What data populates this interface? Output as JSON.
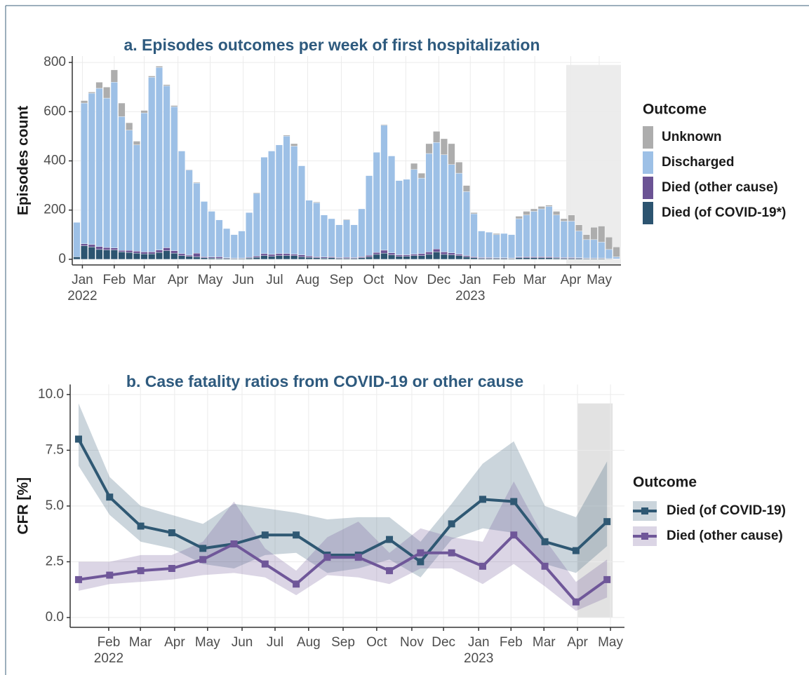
{
  "chart_data": [
    {
      "type": "bar",
      "stacked": true,
      "title": "a. Episodes outcomes per week of first hospitalization",
      "ylabel": "Episodes count",
      "legend_title": "Outcome",
      "legend": "right",
      "grid": true,
      "categories": [
        null,
        null,
        null,
        null,
        null,
        null,
        null,
        null,
        null,
        null,
        null,
        null,
        null,
        null,
        null,
        null,
        null,
        null,
        null,
        null,
        null,
        null,
        null,
        null,
        null,
        null,
        null,
        null,
        null,
        null,
        null,
        null,
        null,
        null,
        null,
        null,
        null,
        null,
        null,
        null,
        null,
        null,
        null,
        null,
        null,
        null,
        null,
        null,
        null,
        null,
        null,
        null,
        null,
        null,
        null,
        null,
        null,
        null,
        null,
        null,
        null,
        null,
        null,
        null,
        null,
        null,
        null,
        null,
        null,
        null,
        null,
        null,
        null
      ],
      "xlim": [
        -0.6,
        72.6
      ],
      "ylim": [
        -23,
        826
      ],
      "yticks": [
        0,
        200,
        400,
        600,
        800
      ],
      "xticks": [
        {
          "value": 0.75,
          "label": "Jan"
        },
        {
          "value": 5.0,
          "label": "Feb"
        },
        {
          "value": 9.0,
          "label": "Mar"
        },
        {
          "value": 13.5,
          "label": "Apr"
        },
        {
          "value": 17.8,
          "label": "May"
        },
        {
          "value": 22.2,
          "label": "Jun"
        },
        {
          "value": 26.4,
          "label": "Jul"
        },
        {
          "value": 30.8,
          "label": "Aug"
        },
        {
          "value": 35.3,
          "label": "Sep"
        },
        {
          "value": 39.6,
          "label": "Oct"
        },
        {
          "value": 43.9,
          "label": "Nov"
        },
        {
          "value": 48.3,
          "label": "Dec"
        },
        {
          "value": 52.5,
          "label": "Jan"
        },
        {
          "value": 57.0,
          "label": "Feb"
        },
        {
          "value": 61.1,
          "label": "Mar"
        },
        {
          "value": 65.9,
          "label": "Apr"
        },
        {
          "value": 69.7,
          "label": "May"
        }
      ],
      "xsublabels": [
        {
          "value": 0.75,
          "label": "2022"
        },
        {
          "value": 52.5,
          "label": "2023"
        }
      ],
      "highlight": {
        "x": [
          65.3,
          72.6
        ],
        "y": [
          -23,
          790
        ]
      },
      "series": [
        {
          "name": "Died (of COVID-19*)",
          "color": "#2c5470",
          "values": [
            10,
            55,
            50,
            40,
            38,
            38,
            30,
            28,
            25,
            22,
            22,
            28,
            35,
            25,
            15,
            12,
            10,
            6,
            5,
            4,
            4,
            3,
            3,
            5,
            8,
            15,
            12,
            15,
            15,
            15,
            10,
            8,
            6,
            5,
            6,
            4,
            4,
            4,
            6,
            10,
            20,
            25,
            18,
            12,
            12,
            15,
            15,
            20,
            30,
            20,
            18,
            15,
            10,
            6,
            4,
            4,
            4,
            4,
            3,
            6,
            6,
            6,
            6,
            6,
            5,
            4,
            4,
            4,
            3,
            3,
            3,
            2,
            1
          ]
        },
        {
          "name": "Died (other cause)",
          "color": "#6b5394",
          "values": [
            0,
            8,
            10,
            12,
            10,
            8,
            6,
            8,
            8,
            8,
            8,
            10,
            12,
            10,
            8,
            5,
            15,
            4,
            4,
            6,
            2,
            2,
            2,
            3,
            5,
            8,
            8,
            8,
            8,
            6,
            8,
            5,
            4,
            4,
            4,
            3,
            4,
            3,
            4,
            6,
            8,
            12,
            8,
            6,
            6,
            6,
            8,
            10,
            12,
            10,
            8,
            6,
            5,
            4,
            3,
            3,
            2,
            2,
            2,
            3,
            4,
            4,
            4,
            4,
            3,
            3,
            3,
            2,
            2,
            2,
            2,
            1,
            1
          ]
        },
        {
          "name": "Discharged",
          "color": "#9dc0e6",
          "values": [
            140,
            572,
            615,
            643,
            607,
            674,
            544,
            489,
            432,
            565,
            710,
            742,
            658,
            585,
            417,
            346,
            285,
            225,
            186,
            150,
            119,
            95,
            110,
            182,
            255,
            392,
            420,
            442,
            478,
            439,
            362,
            227,
            220,
            171,
            155,
            133,
            152,
            133,
            195,
            324,
            407,
            508,
            394,
            302,
            307,
            344,
            307,
            400,
            433,
            395,
            359,
            329,
            260,
            175,
            108,
            103,
            94,
            99,
            95,
            156,
            170,
            185,
            195,
            205,
            172,
            148,
            148,
            109,
            75,
            75,
            65,
            37,
            8
          ]
        },
        {
          "name": "Unknown",
          "color": "#adadad",
          "values": [
            0,
            10,
            5,
            25,
            45,
            50,
            55,
            30,
            15,
            10,
            5,
            5,
            5,
            5,
            0,
            2,
            3,
            0,
            0,
            0,
            0,
            0,
            0,
            0,
            3,
            0,
            0,
            0,
            4,
            10,
            0,
            0,
            3,
            0,
            0,
            0,
            3,
            0,
            0,
            0,
            0,
            3,
            0,
            0,
            0,
            25,
            20,
            40,
            45,
            65,
            85,
            45,
            25,
            5,
            0,
            0,
            5,
            0,
            0,
            10,
            15,
            10,
            10,
            5,
            15,
            10,
            25,
            25,
            20,
            50,
            65,
            50,
            40
          ]
        }
      ]
    },
    {
      "type": "line",
      "title": "b. Case fatality ratios from COVID-19 or other cause",
      "ylabel": "CFR [%]",
      "legend_title": "Outcome",
      "legend": "right",
      "grid": true,
      "categories": [
        null,
        null,
        null,
        null,
        null,
        null,
        null,
        null,
        null,
        null,
        null,
        null,
        null,
        null,
        null,
        null,
        null,
        null
      ],
      "xlim": [
        -0.27,
        17.56
      ],
      "ylim": [
        -0.44,
        10.45
      ],
      "yticks": [
        {
          "value": 0,
          "label": "0.0"
        },
        2.5,
        {
          "value": 5,
          "label": "5.0"
        },
        7.5,
        {
          "value": 10,
          "label": "10.0"
        }
      ],
      "xticks": [
        {
          "value": 0.97,
          "label": "Feb"
        },
        {
          "value": 1.99,
          "label": "Mar"
        },
        {
          "value": 3.09,
          "label": "Apr"
        },
        {
          "value": 4.15,
          "label": "May"
        },
        {
          "value": 5.26,
          "label": "Jun"
        },
        {
          "value": 6.32,
          "label": "Jul"
        },
        {
          "value": 7.4,
          "label": "Aug"
        },
        {
          "value": 8.51,
          "label": "Sep"
        },
        {
          "value": 9.59,
          "label": "Oct"
        },
        {
          "value": 10.72,
          "label": "Nov"
        },
        {
          "value": 11.74,
          "label": "Dec"
        },
        {
          "value": 12.87,
          "label": "Jan"
        },
        {
          "value": 13.91,
          "label": "Feb"
        },
        {
          "value": 14.97,
          "label": "Mar"
        },
        {
          "value": 16.05,
          "label": "Apr"
        },
        {
          "value": 17.11,
          "label": "May"
        }
      ],
      "xsublabels": [
        {
          "value": 0.97,
          "label": "2022"
        },
        {
          "value": 12.87,
          "label": "2023"
        }
      ],
      "highlight": {
        "x": [
          16.05,
          17.18
        ],
        "y": [
          0,
          9.6
        ]
      },
      "series": [
        {
          "name": "Died (of COVID-19)",
          "color": "#2f5873",
          "values": [
            8.0,
            5.4,
            4.1,
            3.8,
            3.1,
            3.3,
            3.7,
            3.7,
            2.8,
            2.8,
            3.5,
            2.5,
            4.2,
            5.3,
            5.2,
            3.4,
            3.0,
            4.3
          ],
          "lower": [
            6.8,
            4.6,
            3.4,
            3.1,
            2.4,
            2.2,
            2.8,
            2.9,
            2.0,
            2.2,
            2.6,
            1.8,
            3.5,
            4.0,
            3.8,
            2.4,
            2.0,
            3.2
          ],
          "upper": [
            9.6,
            6.3,
            5.0,
            4.6,
            4.2,
            5.1,
            4.9,
            4.7,
            4.4,
            4.5,
            4.5,
            3.4,
            5.1,
            6.9,
            7.9,
            5.0,
            4.5,
            7.0
          ]
        },
        {
          "name": "Died (other cause)",
          "color": "#6f5799",
          "values": [
            1.7,
            1.9,
            2.1,
            2.2,
            2.6,
            3.3,
            2.4,
            1.5,
            2.7,
            2.7,
            2.1,
            2.9,
            2.9,
            2.3,
            3.7,
            2.3,
            0.7,
            1.7
          ],
          "lower": [
            1.2,
            1.5,
            1.6,
            1.7,
            1.9,
            2.0,
            1.8,
            1.0,
            1.9,
            1.8,
            1.5,
            2.2,
            2.2,
            1.5,
            2.4,
            1.4,
            0.3,
            0.9
          ],
          "upper": [
            2.5,
            2.5,
            2.8,
            2.8,
            3.4,
            5.2,
            3.1,
            2.1,
            3.6,
            4.3,
            2.9,
            4.0,
            3.6,
            3.4,
            6.1,
            3.5,
            1.6,
            2.6
          ]
        }
      ]
    }
  ]
}
